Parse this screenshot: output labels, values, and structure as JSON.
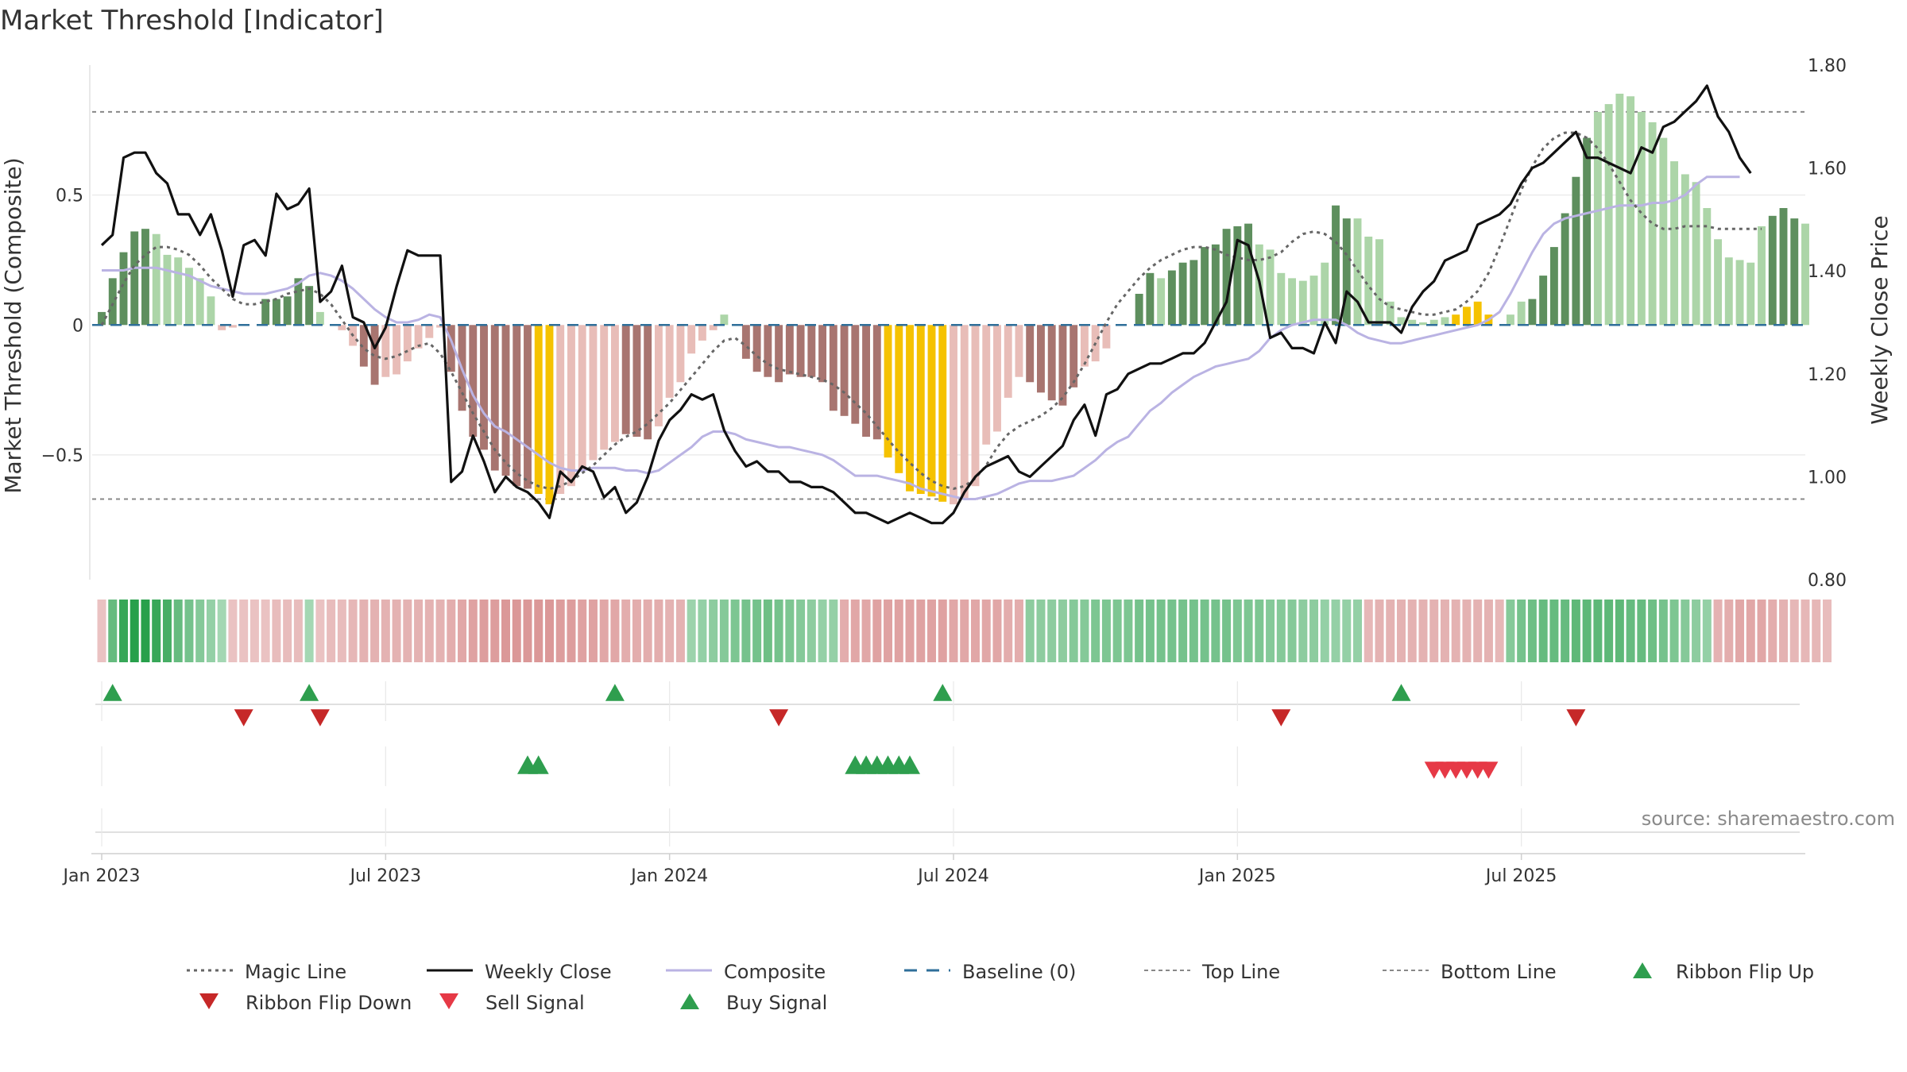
{
  "title": "Market Threshold [Indicator]",
  "source": "source: sharemaestro.com",
  "colors": {
    "pos_dark": "#5e8f5e",
    "pos_light": "#acd5a8",
    "neg_dark": "#a87570",
    "neg_light": "#e8bdb8",
    "extreme": "#f5c200",
    "weekly_close": "#111111",
    "magic": "#666666",
    "composite": "#bab3e3",
    "baseline": "#2f6f9a",
    "buy": "#2e9e4e",
    "sell": "#d93838"
  },
  "chart_data": {
    "type": "bar",
    "title": "Market Threshold [Indicator]",
    "ylabel_left": "Market Threshold (Composite)",
    "ylabel_right": "Weekly Close Price",
    "yticks_left": [
      {
        "v": 0.5,
        "label": "0.5"
      },
      {
        "v": 0,
        "label": "0"
      },
      {
        "v": -0.5,
        "label": "−0.5"
      }
    ],
    "yticks_right": [
      {
        "v": 1.8,
        "label": "1.80"
      },
      {
        "v": 1.6,
        "label": "1.60"
      },
      {
        "v": 1.4,
        "label": "1.40"
      },
      {
        "v": 1.2,
        "label": "1.20"
      },
      {
        "v": 1.0,
        "label": "1.00"
      },
      {
        "v": 0.8,
        "label": "0.80"
      }
    ],
    "ylim_left": [
      -0.98,
      1.0
    ],
    "ylim_right": [
      0.8,
      1.8
    ],
    "top_line": 0.82,
    "bottom_line": -0.67,
    "xticks": [
      {
        "week": 0,
        "label": "Jan 2023"
      },
      {
        "week": 26,
        "label": "Jul 2023"
      },
      {
        "week": 52,
        "label": "Jan 2024"
      },
      {
        "week": 78,
        "label": "Jul 2024"
      },
      {
        "week": 104,
        "label": "Jan 2025"
      },
      {
        "week": 130,
        "label": "Jul 2025"
      }
    ],
    "composite_bars": [
      0.05,
      0.18,
      0.28,
      0.36,
      0.37,
      0.35,
      0.27,
      0.26,
      0.22,
      0.18,
      0.11,
      -0.02,
      -0.01,
      0,
      0,
      0.1,
      0.1,
      0.11,
      0.18,
      0.15,
      0.05,
      0,
      -0.02,
      -0.08,
      -0.16,
      -0.23,
      -0.2,
      -0.19,
      -0.14,
      -0.09,
      -0.05,
      -0.01,
      -0.18,
      -0.33,
      -0.43,
      -0.48,
      -0.56,
      -0.58,
      -0.62,
      -0.63,
      -0.65,
      -0.69,
      -0.65,
      -0.62,
      -0.56,
      -0.52,
      -0.48,
      -0.45,
      -0.42,
      -0.43,
      -0.44,
      -0.39,
      -0.28,
      -0.22,
      -0.11,
      -0.06,
      -0.02,
      0.04,
      0,
      -0.13,
      -0.18,
      -0.2,
      -0.22,
      -0.19,
      -0.2,
      -0.2,
      -0.22,
      -0.33,
      -0.35,
      -0.38,
      -0.43,
      -0.44,
      -0.51,
      -0.57,
      -0.64,
      -0.65,
      -0.66,
      -0.68,
      -0.69,
      -0.67,
      -0.62,
      -0.46,
      -0.41,
      -0.28,
      -0.2,
      -0.22,
      -0.26,
      -0.29,
      -0.31,
      -0.24,
      -0.16,
      -0.14,
      -0.09,
      0,
      0,
      0.12,
      0.2,
      0.18,
      0.21,
      0.24,
      0.25,
      0.3,
      0.31,
      0.37,
      0.38,
      0.39,
      0.31,
      0.29,
      0.2,
      0.18,
      0.17,
      0.19,
      0.24,
      0.46,
      0.41,
      0.41,
      0.34,
      0.33,
      0.09,
      0.03,
      0.02,
      0.01,
      0.02,
      0.03,
      0.04,
      0.07,
      0.09,
      0.04,
      0,
      0.04,
      0.09,
      0.1,
      0.19,
      0.3,
      0.43,
      0.57,
      0.72,
      0.82,
      0.85,
      0.89,
      0.88,
      0.82,
      0.78,
      0.72,
      0.63,
      0.58,
      0.55,
      0.45,
      0.33,
      0.26,
      0.25,
      0.24,
      0.38,
      0.42,
      0.45,
      0.41,
      0.39
    ],
    "bar_tone": [
      1,
      1,
      1,
      1,
      1,
      0,
      0,
      0,
      0,
      0,
      0,
      0,
      0,
      0,
      0,
      1,
      1,
      1,
      1,
      1,
      0,
      0,
      0,
      0,
      1,
      1,
      0,
      0,
      0,
      0,
      0,
      0,
      1,
      1,
      1,
      1,
      1,
      1,
      1,
      1,
      1,
      2,
      0,
      0,
      0,
      0,
      0,
      0,
      1,
      1,
      1,
      0,
      0,
      0,
      0,
      0,
      0,
      0,
      0,
      1,
      1,
      1,
      1,
      1,
      1,
      1,
      1,
      1,
      1,
      1,
      1,
      1,
      1,
      1,
      2,
      2,
      2,
      2,
      2,
      2,
      2,
      0,
      0,
      0,
      0,
      1,
      1,
      1,
      1,
      1,
      0,
      0,
      0,
      0,
      0,
      1,
      1,
      0,
      1,
      1,
      1,
      1,
      1,
      1,
      1,
      1,
      0,
      0,
      0,
      0,
      0,
      0,
      0,
      1,
      1,
      0,
      0,
      0,
      0,
      0,
      0,
      0,
      0,
      0,
      0,
      0,
      0,
      1,
      1,
      0,
      0,
      1,
      1,
      1,
      1,
      1,
      1,
      2,
      2,
      2,
      2,
      2,
      2,
      0,
      0,
      0,
      0,
      0,
      0,
      0,
      0,
      0,
      0,
      1,
      1,
      1,
      0,
      0
    ],
    "extreme_bars": [
      40,
      41,
      72,
      73,
      74,
      75,
      76,
      77,
      124,
      125,
      126,
      127,
      128
    ],
    "magic_line": [
      0,
      0.08,
      0.16,
      0.23,
      0.27,
      0.3,
      0.3,
      0.29,
      0.27,
      0.23,
      0.18,
      0.14,
      0.1,
      0.08,
      0.08,
      0.09,
      0.1,
      0.12,
      0.13,
      0.14,
      0.12,
      0.08,
      0.02,
      -0.04,
      -0.09,
      -0.12,
      -0.13,
      -0.12,
      -0.1,
      -0.08,
      -0.07,
      -0.11,
      -0.18,
      -0.26,
      -0.34,
      -0.41,
      -0.48,
      -0.53,
      -0.57,
      -0.6,
      -0.62,
      -0.63,
      -0.62,
      -0.6,
      -0.57,
      -0.54,
      -0.5,
      -0.46,
      -0.43,
      -0.41,
      -0.38,
      -0.34,
      -0.3,
      -0.25,
      -0.2,
      -0.15,
      -0.1,
      -0.06,
      -0.05,
      -0.08,
      -0.12,
      -0.15,
      -0.17,
      -0.18,
      -0.19,
      -0.2,
      -0.21,
      -0.23,
      -0.26,
      -0.3,
      -0.34,
      -0.39,
      -0.44,
      -0.49,
      -0.53,
      -0.57,
      -0.6,
      -0.62,
      -0.63,
      -0.62,
      -0.59,
      -0.54,
      -0.47,
      -0.42,
      -0.39,
      -0.37,
      -0.35,
      -0.32,
      -0.28,
      -0.22,
      -0.15,
      -0.07,
      0.01,
      0.08,
      0.13,
      0.18,
      0.22,
      0.25,
      0.27,
      0.29,
      0.3,
      0.3,
      0.29,
      0.27,
      0.26,
      0.25,
      0.25,
      0.26,
      0.28,
      0.32,
      0.35,
      0.36,
      0.35,
      0.32,
      0.27,
      0.21,
      0.15,
      0.1,
      0.07,
      0.06,
      0.05,
      0.04,
      0.04,
      0.05,
      0.06,
      0.09,
      0.13,
      0.2,
      0.3,
      0.41,
      0.52,
      0.61,
      0.68,
      0.72,
      0.74,
      0.74,
      0.72,
      0.68,
      0.62,
      0.55,
      0.48,
      0.43,
      0.39,
      0.37,
      0.37,
      0.38,
      0.38,
      0.38,
      0.37,
      0.37,
      0.37,
      0.37,
      0.37
    ],
    "weekly_close": [
      1.45,
      1.47,
      1.62,
      1.63,
      1.63,
      1.59,
      1.57,
      1.51,
      1.51,
      1.47,
      1.51,
      1.44,
      1.35,
      1.45,
      1.46,
      1.43,
      1.55,
      1.52,
      1.53,
      1.56,
      1.34,
      1.36,
      1.41,
      1.31,
      1.3,
      1.25,
      1.29,
      1.37,
      1.44,
      1.43,
      1.43,
      1.43,
      0.99,
      1.01,
      1.08,
      1.03,
      0.97,
      1.0,
      0.98,
      0.97,
      0.95,
      0.92,
      1.01,
      0.99,
      1.02,
      1.01,
      0.96,
      0.98,
      0.93,
      0.95,
      1.0,
      1.07,
      1.11,
      1.13,
      1.16,
      1.15,
      1.16,
      1.09,
      1.05,
      1.02,
      1.03,
      1.01,
      1.01,
      0.99,
      0.99,
      0.98,
      0.98,
      0.97,
      0.95,
      0.93,
      0.93,
      0.92,
      0.91,
      0.92,
      0.93,
      0.92,
      0.91,
      0.91,
      0.93,
      0.97,
      1.0,
      1.02,
      1.03,
      1.04,
      1.01,
      1.0,
      1.02,
      1.04,
      1.06,
      1.11,
      1.14,
      1.08,
      1.16,
      1.17,
      1.2,
      1.21,
      1.22,
      1.22,
      1.23,
      1.24,
      1.24,
      1.26,
      1.3,
      1.34,
      1.46,
      1.45,
      1.38,
      1.27,
      1.28,
      1.25,
      1.25,
      1.24,
      1.3,
      1.26,
      1.36,
      1.34,
      1.3,
      1.3,
      1.3,
      1.28,
      1.33,
      1.36,
      1.38,
      1.42,
      1.43,
      1.44,
      1.49,
      1.5,
      1.51,
      1.53,
      1.57,
      1.6,
      1.61,
      1.63,
      1.65,
      1.67,
      1.62,
      1.62,
      1.61,
      1.6,
      1.59,
      1.64,
      1.63,
      1.68,
      1.69,
      1.71,
      1.73,
      1.76,
      1.7,
      1.67,
      1.62,
      1.59
    ],
    "composite_line": [
      0.21,
      0.21,
      0.21,
      0.22,
      0.22,
      0.22,
      0.21,
      0.2,
      0.19,
      0.17,
      0.15,
      0.14,
      0.13,
      0.12,
      0.12,
      0.12,
      0.13,
      0.14,
      0.16,
      0.19,
      0.2,
      0.19,
      0.17,
      0.14,
      0.1,
      0.06,
      0.03,
      0.01,
      0.01,
      0.02,
      0.04,
      0.03,
      -0.06,
      -0.17,
      -0.27,
      -0.34,
      -0.39,
      -0.41,
      -0.44,
      -0.47,
      -0.5,
      -0.53,
      -0.55,
      -0.56,
      -0.56,
      -0.55,
      -0.55,
      -0.55,
      -0.56,
      -0.56,
      -0.57,
      -0.56,
      -0.53,
      -0.5,
      -0.47,
      -0.43,
      -0.41,
      -0.41,
      -0.42,
      -0.44,
      -0.45,
      -0.46,
      -0.47,
      -0.47,
      -0.48,
      -0.49,
      -0.5,
      -0.52,
      -0.55,
      -0.58,
      -0.58,
      -0.58,
      -0.59,
      -0.6,
      -0.61,
      -0.63,
      -0.64,
      -0.65,
      -0.66,
      -0.67,
      -0.67,
      -0.66,
      -0.65,
      -0.63,
      -0.61,
      -0.6,
      -0.6,
      -0.6,
      -0.59,
      -0.58,
      -0.55,
      -0.52,
      -0.48,
      -0.45,
      -0.43,
      -0.38,
      -0.33,
      -0.3,
      -0.26,
      -0.23,
      -0.2,
      -0.18,
      -0.16,
      -0.15,
      -0.14,
      -0.13,
      -0.1,
      -0.05,
      -0.02,
      0,
      0.01,
      0.02,
      0.02,
      0.02,
      0.0,
      -0.03,
      -0.05,
      -0.06,
      -0.07,
      -0.07,
      -0.06,
      -0.05,
      -0.04,
      -0.03,
      -0.02,
      -0.01,
      0.0,
      0.02,
      0.05,
      0.12,
      0.2,
      0.28,
      0.35,
      0.39,
      0.41,
      0.42,
      0.43,
      0.44,
      0.45,
      0.46,
      0.46,
      0.46,
      0.47,
      0.47,
      0.48,
      0.5,
      0.54,
      0.57,
      0.57,
      0.57,
      0.57
    ],
    "ribbon_tone": [
      -0.2,
      0.6,
      0.9,
      1,
      1,
      0.9,
      0.8,
      0.6,
      0.5,
      0.4,
      0.3,
      0.2,
      -0.2,
      -0.2,
      -0.2,
      -0.2,
      -0.25,
      -0.25,
      -0.25,
      0.2,
      -0.2,
      -0.25,
      -0.25,
      -0.3,
      -0.35,
      -0.35,
      -0.35,
      -0.35,
      -0.35,
      -0.35,
      -0.35,
      -0.35,
      -0.4,
      -0.45,
      -0.5,
      -0.55,
      -0.55,
      -0.6,
      -0.6,
      -0.6,
      -0.6,
      -0.6,
      -0.55,
      -0.55,
      -0.5,
      -0.5,
      -0.45,
      -0.45,
      -0.4,
      -0.4,
      -0.4,
      -0.4,
      -0.35,
      -0.35,
      0.25,
      0.3,
      0.35,
      0.4,
      0.45,
      0.5,
      0.5,
      0.55,
      0.5,
      0.45,
      0.4,
      0.35,
      0.3,
      0.3,
      -0.4,
      -0.45,
      -0.45,
      -0.5,
      -0.5,
      -0.5,
      -0.5,
      -0.5,
      -0.5,
      -0.5,
      -0.45,
      -0.45,
      -0.45,
      -0.45,
      -0.45,
      -0.4,
      -0.4,
      0.35,
      0.35,
      0.35,
      0.35,
      0.4,
      0.4,
      0.45,
      0.45,
      0.45,
      0.45,
      0.5,
      0.5,
      0.5,
      0.5,
      0.5,
      0.5,
      0.5,
      0.5,
      0.5,
      0.45,
      0.45,
      0.45,
      0.4,
      0.4,
      0.4,
      0.35,
      0.35,
      0.3,
      0.3,
      0.3,
      0.3,
      -0.3,
      -0.35,
      -0.35,
      -0.35,
      -0.35,
      -0.35,
      -0.35,
      -0.35,
      -0.35,
      -0.35,
      -0.35,
      -0.35,
      -0.3,
      0.4,
      0.5,
      0.55,
      0.6,
      0.6,
      0.6,
      0.65,
      0.65,
      0.65,
      0.65,
      0.65,
      0.6,
      0.6,
      0.55,
      0.5,
      0.45,
      0.4,
      0.35,
      0.3,
      -0.35,
      -0.4,
      -0.45,
      -0.45,
      -0.45,
      -0.4,
      -0.35,
      -0.3,
      -0.3,
      -0.3,
      -0.25
    ],
    "ribbon_flip_up": [
      1,
      19,
      47,
      77,
      119
    ],
    "ribbon_flip_down": [
      13,
      20,
      62,
      108,
      135
    ],
    "buy_signals": [
      39,
      40,
      69,
      70,
      71,
      72,
      73,
      74
    ],
    "sell_signals": [
      122,
      123,
      124,
      125,
      126,
      127
    ]
  },
  "legend": [
    {
      "label": "Magic Line",
      "kind": "dotted",
      "color": "#666666"
    },
    {
      "label": "Weekly Close",
      "kind": "solid",
      "color": "#111111"
    },
    {
      "label": "Composite",
      "kind": "solid",
      "color": "#bab3e3"
    },
    {
      "label": "Baseline (0)",
      "kind": "dashed",
      "color": "#2f6f9a"
    },
    {
      "label": "Top Line",
      "kind": "dotted-thin",
      "color": "#888888"
    },
    {
      "label": "Bottom Line",
      "kind": "dotted-thin",
      "color": "#888888"
    },
    {
      "label": "Ribbon Flip Up",
      "kind": "tri-up",
      "color": "#2e9e4e"
    },
    {
      "label": "Ribbon Flip Down",
      "kind": "tri-down",
      "color": "#c62828"
    },
    {
      "label": "Sell Signal",
      "kind": "tri-down",
      "color": "#e63946"
    },
    {
      "label": "Buy Signal",
      "kind": "tri-up",
      "color": "#2e9e4e"
    }
  ]
}
